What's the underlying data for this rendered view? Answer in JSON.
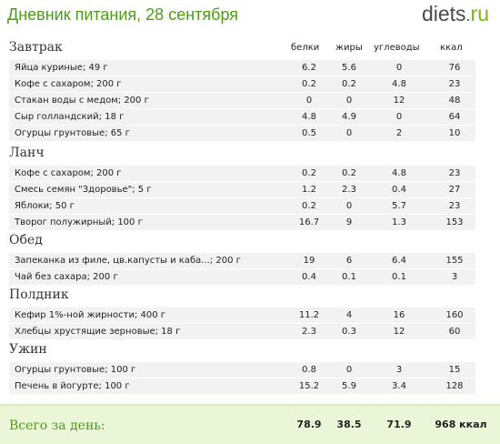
{
  "header": {
    "title": "Дневник питания, 28 сентября",
    "logo": {
      "part1": "diets",
      "part2": "ru",
      "dot": "."
    }
  },
  "columns": {
    "protein": "белки",
    "fat": "жиры",
    "carbs": "углеводы",
    "kcal": "ккал"
  },
  "meals": [
    {
      "name": "Завтрак",
      "items": [
        {
          "name": "Яйца куриные; 49 г",
          "protein": "6.2",
          "fat": "5.6",
          "carbs": "0",
          "kcal": "76"
        },
        {
          "name": "Кофе с сахаром; 200 г",
          "protein": "0.2",
          "fat": "0.2",
          "carbs": "4.8",
          "kcal": "23"
        },
        {
          "name": "Стакан воды с медом; 200 г",
          "protein": "0",
          "fat": "0",
          "carbs": "12",
          "kcal": "48"
        },
        {
          "name": "Сыр голландский; 18 г",
          "protein": "4.8",
          "fat": "4.9",
          "carbs": "0",
          "kcal": "64"
        },
        {
          "name": "Огурцы грунтовые; 65 г",
          "protein": "0.5",
          "fat": "0",
          "carbs": "2",
          "kcal": "10"
        }
      ]
    },
    {
      "name": "Ланч",
      "items": [
        {
          "name": "Кофе с сахаром; 200 г",
          "protein": "0.2",
          "fat": "0.2",
          "carbs": "4.8",
          "kcal": "23"
        },
        {
          "name": "Смесь семян \"Здоровье\"; 5 г",
          "protein": "1.2",
          "fat": "2.3",
          "carbs": "0.4",
          "kcal": "27"
        },
        {
          "name": "Яблоки; 50 г",
          "protein": "0.2",
          "fat": "0",
          "carbs": "5.7",
          "kcal": "23"
        },
        {
          "name": "Творог полужирный; 100 г",
          "protein": "16.7",
          "fat": "9",
          "carbs": "1.3",
          "kcal": "153"
        }
      ]
    },
    {
      "name": "Обед",
      "items": [
        {
          "name": "Запеканка из филе, цв.капусты и каба...; 200 г",
          "protein": "19",
          "fat": "6",
          "carbs": "6.4",
          "kcal": "155"
        },
        {
          "name": "Чай без сахара; 200 г",
          "protein": "0.4",
          "fat": "0.1",
          "carbs": "0.1",
          "kcal": "3"
        }
      ]
    },
    {
      "name": "Полдник",
      "items": [
        {
          "name": "Кефир 1%-ной жирности; 400 г",
          "protein": "11.2",
          "fat": "4",
          "carbs": "16",
          "kcal": "160"
        },
        {
          "name": "Хлебцы хрустящие зерновые; 18 г",
          "protein": "2.3",
          "fat": "0.3",
          "carbs": "12",
          "kcal": "60"
        }
      ]
    },
    {
      "name": "Ужин",
      "items": [
        {
          "name": "Огурцы грунтовые; 100 г",
          "protein": "0.8",
          "fat": "0",
          "carbs": "3",
          "kcal": "15"
        },
        {
          "name": "Печень в йогурте; 100 г",
          "protein": "15.2",
          "fat": "5.9",
          "carbs": "3.4",
          "kcal": "128"
        }
      ]
    }
  ],
  "totals": {
    "label": "Всего за день:",
    "protein": "78.9",
    "fat": "38.5",
    "carbs": "71.9",
    "kcal": "968 ккал"
  },
  "colors": {
    "title": "#4e9a1e",
    "row_bg": "#f2f2f2",
    "footer_bg": "#ebf5d7",
    "logo_accent": "#7ab51d"
  }
}
